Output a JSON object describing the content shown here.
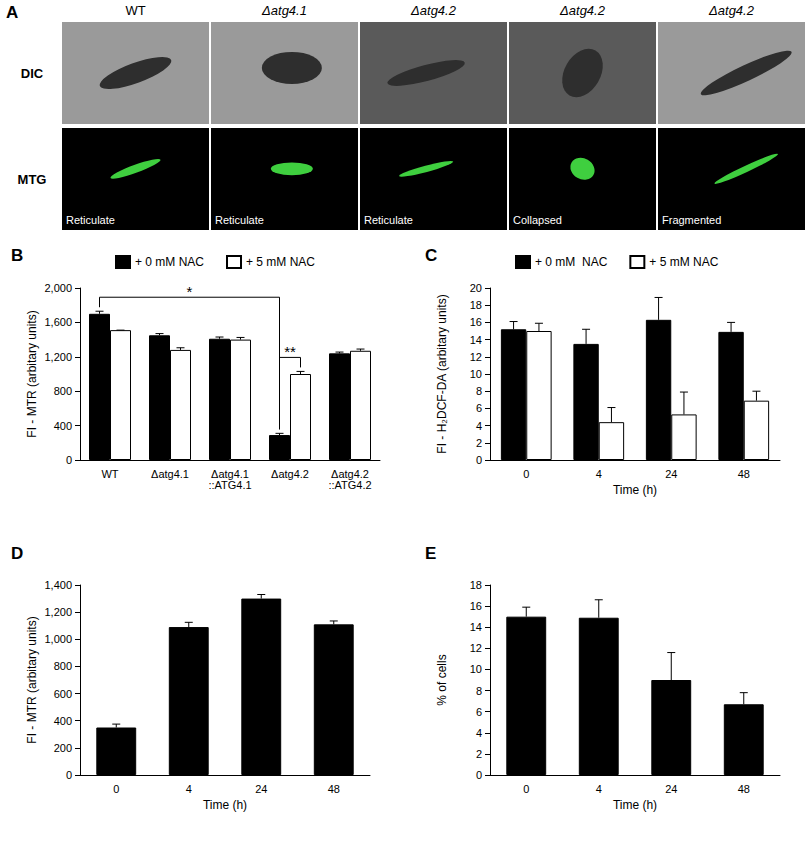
{
  "panel_a": {
    "letter": "A",
    "row_labels": [
      "DIC",
      "MTG"
    ],
    "columns": [
      {
        "title": "WT",
        "mtg_label": "Reticulate"
      },
      {
        "title": "Δatg4.1",
        "mtg_label": "Reticulate"
      },
      {
        "title": "Δatg4.2",
        "mtg_label": "Reticulate"
      },
      {
        "title": "Δatg4.2",
        "mtg_label": "Collapsed"
      },
      {
        "title": "Δatg4.2",
        "mtg_label": "Fragmented"
      }
    ]
  },
  "chart_data": [
    {
      "panel": "B",
      "type": "bar",
      "y_label": "FI - MTR (arbitary units)",
      "categories": [
        "WT",
        "Δatg4.1",
        "Δatg4.1 ::ATG4.1",
        "Δatg4.2",
        "Δatg4.2 ::ATG4.2"
      ],
      "series": [
        {
          "name": "+ 0 mM NAC",
          "color": "#000000",
          "values": [
            1700,
            1450,
            1410,
            290,
            1240
          ],
          "errors": [
            30,
            20,
            20,
            20,
            15
          ]
        },
        {
          "name": "+ 5 mM NAC",
          "color": "#ffffff",
          "values": [
            1510,
            1280,
            1400,
            1000,
            1270
          ],
          "errors": [
            0,
            25,
            25,
            30,
            20
          ]
        }
      ],
      "annotations": [
        {
          "text": "*",
          "from": {
            "category": "WT",
            "series": "+ 0 mM NAC"
          },
          "to": {
            "category": "Δatg4.2",
            "series": "+ 0 mM NAC"
          }
        },
        {
          "text": "**",
          "from": {
            "category": "Δatg4.2",
            "series": "+ 0 mM NAC"
          },
          "to": {
            "category": "Δatg4.2",
            "series": "+ 5 mM NAC"
          }
        }
      ],
      "ylim": [
        0,
        2000
      ],
      "yticks": [
        0,
        400,
        800,
        1200,
        1600,
        2000
      ],
      "grid": false,
      "legend": "top"
    },
    {
      "panel": "C",
      "type": "bar",
      "y_label": "FI - H₂DCF-DA (arbitary units)",
      "x_label": "Time (h)",
      "categories": [
        "0",
        "4",
        "24",
        "48"
      ],
      "series": [
        {
          "name": "+ 0 mM  NAC",
          "color": "#000000",
          "values": [
            15.2,
            13.5,
            16.3,
            14.9
          ],
          "errors": [
            0.9,
            1.7,
            2.6,
            1.1
          ]
        },
        {
          "name": "+ 5 mM NAC",
          "color": "#ffffff",
          "values": [
            15.0,
            4.4,
            5.3,
            6.9
          ],
          "errors": [
            0.9,
            1.7,
            2.6,
            1.1
          ]
        }
      ],
      "ylim": [
        0,
        20
      ],
      "yticks": [
        0,
        2,
        4,
        6,
        8,
        10,
        12,
        14,
        16,
        18,
        20
      ],
      "grid": false,
      "legend": "top"
    },
    {
      "panel": "D",
      "type": "bar",
      "y_label": "FI - MTR (arbitary units)",
      "x_label": "Time (h)",
      "categories": [
        "0",
        "4",
        "24",
        "48"
      ],
      "color": "#000000",
      "values": [
        350,
        1090,
        1300,
        1110
      ],
      "errors": [
        25,
        35,
        30,
        25
      ],
      "ylim": [
        0,
        1400
      ],
      "yticks": [
        0,
        200,
        400,
        600,
        800,
        1000,
        1200,
        1400
      ],
      "grid": false
    },
    {
      "panel": "E",
      "type": "bar",
      "y_label": "% of cells",
      "x_label": "Time (h)",
      "categories": [
        "0",
        "4",
        "24",
        "48"
      ],
      "color": "#000000",
      "values": [
        15.0,
        14.9,
        9.0,
        6.7
      ],
      "errors": [
        0.9,
        1.7,
        2.6,
        1.1
      ],
      "ylim": [
        0,
        18
      ],
      "yticks": [
        0,
        2,
        4,
        6,
        8,
        10,
        12,
        14,
        16,
        18
      ],
      "grid": false
    }
  ]
}
